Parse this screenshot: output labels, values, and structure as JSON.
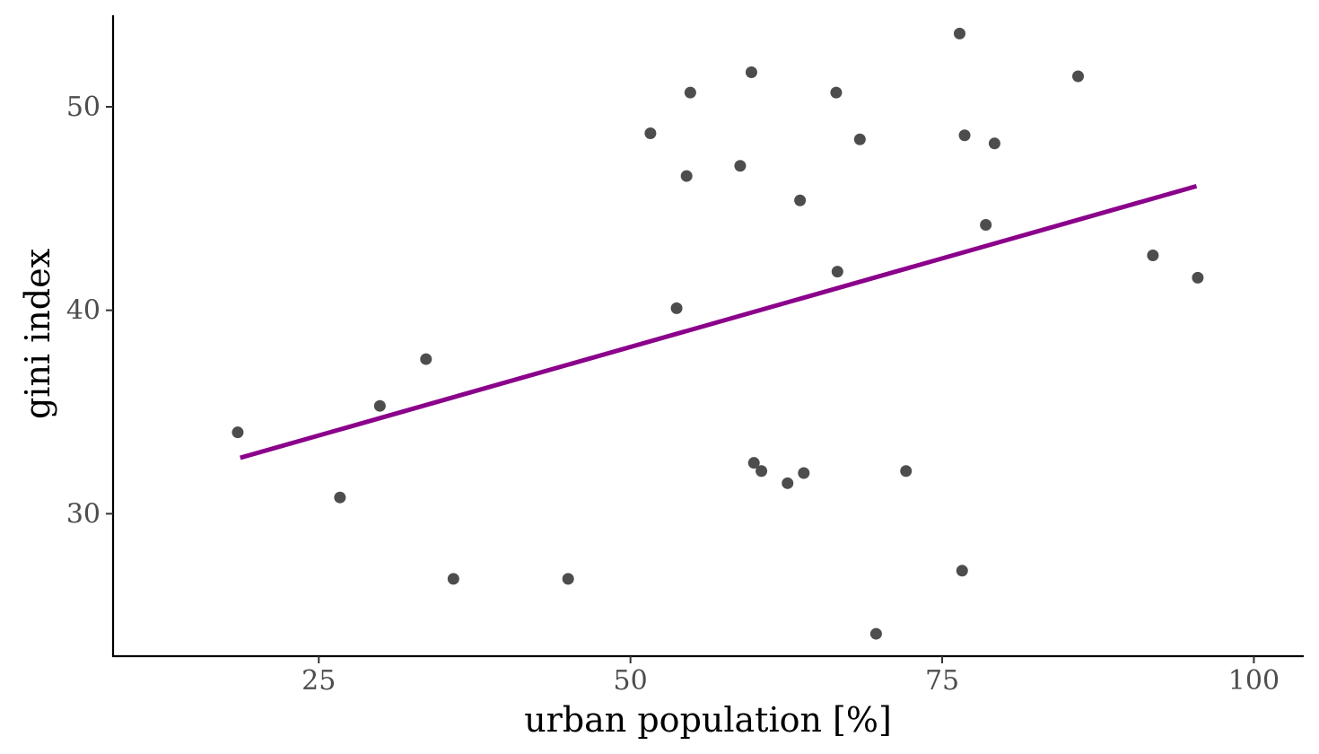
{
  "chart_data": {
    "type": "scatter",
    "title": "",
    "xlabel": "urban population [%]",
    "ylabel": "gini index",
    "xlim": [
      8.5,
      104
    ],
    "ylim": [
      23.0,
      54.5
    ],
    "x_ticks": [
      25,
      50,
      75,
      100
    ],
    "y_ticks": [
      30,
      40,
      50
    ],
    "grid": false,
    "point_color": "#4d4d4d",
    "points": [
      {
        "x": 18.5,
        "y": 34.0
      },
      {
        "x": 26.7,
        "y": 30.8
      },
      {
        "x": 29.9,
        "y": 35.3
      },
      {
        "x": 33.6,
        "y": 37.6
      },
      {
        "x": 35.8,
        "y": 26.8
      },
      {
        "x": 45.0,
        "y": 26.8
      },
      {
        "x": 51.6,
        "y": 48.7
      },
      {
        "x": 53.7,
        "y": 40.1
      },
      {
        "x": 54.5,
        "y": 46.6
      },
      {
        "x": 54.8,
        "y": 50.7
      },
      {
        "x": 58.8,
        "y": 47.1
      },
      {
        "x": 59.7,
        "y": 51.7
      },
      {
        "x": 59.9,
        "y": 32.5
      },
      {
        "x": 60.5,
        "y": 32.1
      },
      {
        "x": 62.6,
        "y": 31.5
      },
      {
        "x": 63.6,
        "y": 45.4
      },
      {
        "x": 63.9,
        "y": 32.0
      },
      {
        "x": 66.5,
        "y": 50.7
      },
      {
        "x": 66.6,
        "y": 41.9
      },
      {
        "x": 68.4,
        "y": 48.4
      },
      {
        "x": 69.7,
        "y": 24.1
      },
      {
        "x": 72.1,
        "y": 32.1
      },
      {
        "x": 76.4,
        "y": 53.6
      },
      {
        "x": 76.6,
        "y": 27.2
      },
      {
        "x": 76.8,
        "y": 48.6
      },
      {
        "x": 78.5,
        "y": 44.2
      },
      {
        "x": 79.2,
        "y": 48.2
      },
      {
        "x": 85.9,
        "y": 51.5
      },
      {
        "x": 91.9,
        "y": 42.7
      },
      {
        "x": 95.5,
        "y": 41.6
      }
    ],
    "trend_line": {
      "color": "#8b008b",
      "x": [
        18.7,
        95.4
      ],
      "y": [
        32.75,
        46.1
      ]
    }
  }
}
